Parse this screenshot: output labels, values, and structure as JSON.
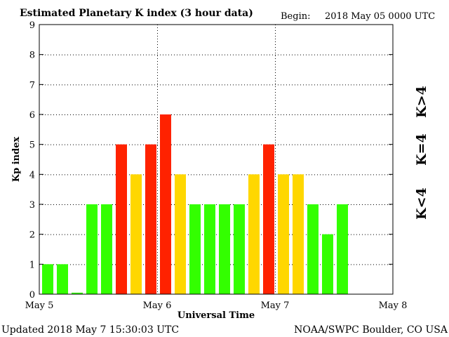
{
  "chart_data": {
    "type": "bar",
    "title": "Estimated Planetary K index (3 hour data)",
    "begin_label": "Begin:",
    "begin_value": "2018 May 05 0000 UTC",
    "xlabel": "Universal Time",
    "ylabel": "Kp index",
    "x_ticks": [
      "May 5",
      "May 6",
      "May 7",
      "May 8"
    ],
    "y_ticks": [
      "0",
      "1",
      "2",
      "3",
      "4",
      "5",
      "6",
      "7",
      "8",
      "9"
    ],
    "ylim": [
      0,
      9
    ],
    "slots": 24,
    "grid": true,
    "values": [
      1,
      1,
      0.05,
      3,
      3,
      5,
      4,
      5,
      6,
      4,
      3,
      3,
      3,
      3,
      4,
      5,
      4,
      4,
      3,
      2,
      3
    ],
    "colors": {
      "low": "#33ff00",
      "mid": "#ffd700",
      "high": "#ff2200"
    },
    "legend": {
      "low": "K<4",
      "mid": "K=4",
      "high": "K>4"
    }
  },
  "footer": {
    "updated": "Updated 2018 May  7 15:30:03 UTC",
    "source": "NOAA/SWPC Boulder, CO USA"
  }
}
